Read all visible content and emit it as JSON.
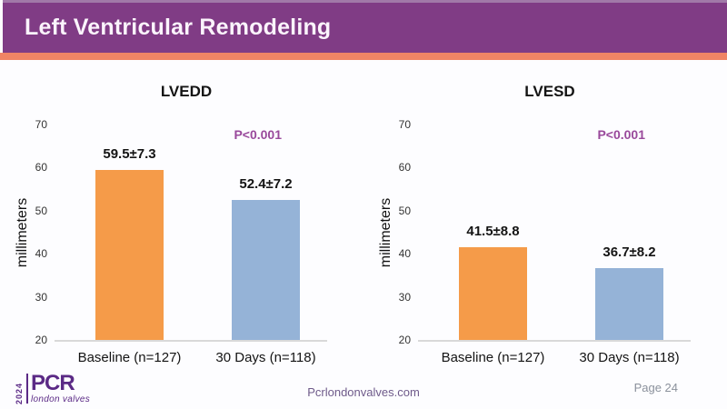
{
  "slide": {
    "title": "Left Ventricular Remodeling"
  },
  "footer": {
    "logo_year": "2024",
    "logo_brand": "PCR",
    "logo_subbrand": "london valves",
    "website": "Pcrlondonvalves.com",
    "page_label": "Page 24"
  },
  "colors": {
    "header_purple": "#803c85",
    "header_top_edge": "#a179a8",
    "accent_orange": "#f08465",
    "bar_baseline_orange": "#f59b49",
    "bar_30days_blue": "#95b3d7",
    "p_value_purple": "#99499b",
    "logo_purple": "#5b2a86",
    "axis_line_gray": "#d9d9d9"
  },
  "chart_data": [
    {
      "type": "bar",
      "title": "LVEDD",
      "ylabel": "millimeters",
      "ylim": [
        20,
        70
      ],
      "yticks": [
        70,
        60,
        50,
        40,
        30,
        20
      ],
      "categories": [
        "Baseline (n=127)",
        "30 Days (n=118)"
      ],
      "values": [
        59.5,
        52.4
      ],
      "value_labels": [
        "59.5±7.3",
        "52.4±7.2"
      ],
      "annotation": "P<0.001",
      "bar_colors": [
        "#f59b49",
        "#95b3d7"
      ],
      "grid": false,
      "legend": "none"
    },
    {
      "type": "bar",
      "title": "LVESD",
      "ylabel": "millimeters",
      "ylim": [
        20,
        70
      ],
      "yticks": [
        70,
        60,
        50,
        40,
        30,
        20
      ],
      "categories": [
        "Baseline (n=127)",
        "30 Days (n=118)"
      ],
      "values": [
        41.5,
        36.7
      ],
      "value_labels": [
        "41.5±8.8",
        "36.7±8.2"
      ],
      "annotation": "P<0.001",
      "bar_colors": [
        "#f59b49",
        "#95b3d7"
      ],
      "grid": false,
      "legend": "none"
    }
  ]
}
